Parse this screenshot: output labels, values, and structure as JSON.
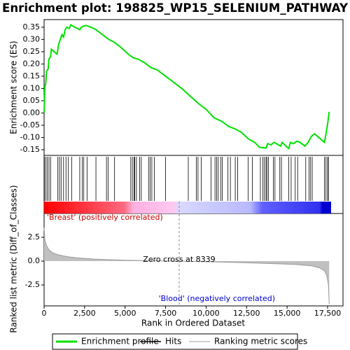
{
  "chart_data": [
    {
      "type": "line",
      "title": "Enrichment plot: 198825_WP15_SELENIUM_PATHWAY",
      "ylabel": "Enrichment score (ES)",
      "xlim": [
        0,
        18450
      ],
      "ylim": [
        -0.173,
        0.381
      ],
      "yticks": [
        0.35,
        {
          "value": 0.3,
          "label": "0.30"
        },
        0.25,
        {
          "value": 0.2,
          "label": "0.20"
        },
        0.15,
        {
          "value": 0.1,
          "label": "0.10"
        },
        0.05,
        {
          "value": 0,
          "label": "0.00"
        },
        -0.05,
        {
          "value": -0.1,
          "label": "-0.10"
        },
        -0.15
      ],
      "series": [
        {
          "name": "Enrichment profile",
          "color": "#00e000",
          "x": [
            0,
            50,
            100,
            150,
            250,
            300,
            400,
            450,
            800,
            900,
            1000,
            1100,
            1200,
            1300,
            1400,
            1550,
            1650,
            1900,
            2200,
            2300,
            2450,
            2600,
            2900,
            3200,
            3500,
            3800,
            4000,
            4300,
            4700,
            5200,
            5500,
            5800,
            6200,
            6600,
            7000,
            7500,
            8000,
            8500,
            9000,
            9500,
            10000,
            10500,
            11000,
            11400,
            11800,
            12200,
            12600,
            13000,
            13300,
            13700,
            13800,
            14000,
            14200,
            14600,
            14700,
            15000,
            15100,
            15200,
            15400,
            15600,
            15800,
            16100,
            16300,
            16500,
            16700,
            17300,
            17400,
            17500,
            17600
          ],
          "values": [
            0,
            0.11,
            0.12,
            0.17,
            0.18,
            0.22,
            0.23,
            0.26,
            0.24,
            0.28,
            0.3,
            0.32,
            0.31,
            0.34,
            0.35,
            0.345,
            0.36,
            0.35,
            0.34,
            0.35,
            0.355,
            0.357,
            0.35,
            0.34,
            0.325,
            0.31,
            0.3,
            0.29,
            0.27,
            0.24,
            0.225,
            0.22,
            0.205,
            0.185,
            0.175,
            0.15,
            0.125,
            0.1,
            0.07,
            0.04,
            0.015,
            -0.02,
            -0.035,
            -0.055,
            -0.065,
            -0.08,
            -0.105,
            -0.12,
            -0.14,
            -0.143,
            -0.125,
            -0.13,
            -0.12,
            -0.135,
            -0.12,
            -0.14,
            -0.145,
            -0.12,
            -0.125,
            -0.115,
            -0.12,
            -0.135,
            -0.12,
            -0.095,
            -0.085,
            -0.12,
            -0.085,
            -0.045,
            0.005
          ]
        },
        {
          "name": "Hits",
          "color": "#000000",
          "x": [
            20,
            100,
            200,
            300,
            400,
            850,
            950,
            1050,
            1200,
            1350,
            1500,
            1700,
            2200,
            2350,
            2450,
            2650,
            3200,
            3850,
            3950,
            4350,
            5350,
            5450,
            5550,
            5600,
            5700,
            5900,
            6000,
            6450,
            6550,
            6650,
            6800,
            7500,
            8900,
            9400,
            9500,
            9700,
            10300,
            10550,
            10650,
            10750,
            10900,
            11000,
            11350,
            11500,
            11800,
            11950,
            12600,
            12850,
            13350,
            13500,
            13600,
            13700,
            13750,
            13850,
            14150,
            14250,
            14550,
            14650,
            15100,
            15250,
            15500,
            15650,
            16150,
            16350,
            16450,
            16550,
            17300,
            17400,
            17500,
            17550
          ]
        }
      ]
    },
    {
      "type": "area",
      "xlabel": "Rank in Ordered Dataset",
      "ylabel": "Ranked list metric (Diff_of_Classes)",
      "xlim": [
        0,
        18450
      ],
      "xticks": [
        0,
        {
          "value": 2500,
          "label": "2,500"
        },
        {
          "value": 5000,
          "label": "5,000"
        },
        {
          "value": 7500,
          "label": "7,500"
        },
        {
          "value": 10000,
          "label": "10,000"
        },
        {
          "value": 12500,
          "label": "12,500"
        },
        {
          "value": 15000,
          "label": "15,000"
        },
        {
          "value": 17500,
          "label": "17,500"
        }
      ],
      "ylim": [
        -4.7,
        5.0
      ],
      "yticks": [
        2.5,
        {
          "value": 0,
          "label": "0.0"
        },
        -2.5
      ],
      "positive_label": "'Breast' (positively correlated)",
      "negative_label": "'Blood' (negatively correlated)",
      "annotation": {
        "text": "Zero cross at 8339",
        "x": 8339
      },
      "series": [
        {
          "name": "Ranking metric scores",
          "color": "#c0c0c0",
          "x": [
            0,
            50,
            150,
            300,
            500,
            800,
            1200,
            1500,
            2000,
            3000,
            4000,
            5000,
            6000,
            7000,
            8339,
            9500,
            11000,
            13000,
            14500,
            15500,
            16500,
            17000,
            17300,
            17450,
            17550,
            17600
          ],
          "values": [
            3.5,
            2.2,
            1.6,
            1.2,
            0.9,
            0.7,
            0.55,
            0.45,
            0.35,
            0.22,
            0.15,
            0.1,
            0.06,
            0.03,
            0,
            -0.04,
            -0.1,
            -0.2,
            -0.28,
            -0.35,
            -0.5,
            -0.7,
            -1.0,
            -1.5,
            -2.5,
            -4.5
          ]
        }
      ]
    }
  ]
}
